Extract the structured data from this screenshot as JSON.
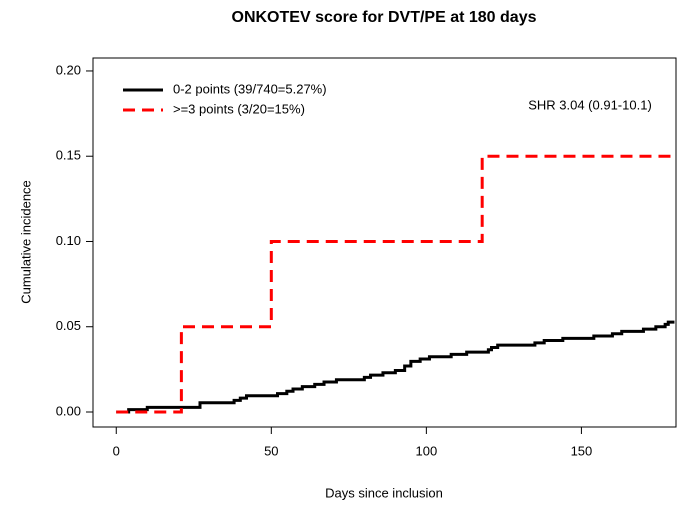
{
  "chart_data": {
    "type": "step",
    "title": "ONKOTEV score for DVT/PE at 180 days",
    "xlabel": "Days since inclusion",
    "ylabel": "Cumulative incidence",
    "annotation": "SHR 3.04 (0.91-10.1)",
    "xlim": [
      -7.5,
      180.5
    ],
    "ylim": [
      -0.0088,
      0.2076
    ],
    "xticks": [
      0,
      50,
      100,
      150
    ],
    "yticks": [
      {
        "value": 0,
        "label": "0.00"
      },
      {
        "value": 0.05,
        "label": "0.05"
      },
      {
        "value": 0.1,
        "label": "0.10"
      },
      {
        "value": 0.15,
        "label": "0.15"
      },
      {
        "value": 0.2,
        "label": "0.20"
      }
    ],
    "legend": "top-left",
    "series": [
      {
        "name": "0-2 points (39/740=5.27%)",
        "color": "#000000",
        "dashed": false,
        "x": [
          0,
          4,
          10,
          27,
          38,
          40,
          42,
          52,
          55,
          57,
          60,
          64,
          67,
          71,
          80,
          82,
          86,
          90,
          93,
          95,
          98,
          101,
          108,
          113,
          120,
          121,
          123,
          135,
          138,
          144,
          154,
          160,
          163,
          170,
          174,
          177,
          178,
          180
        ],
        "values": [
          0,
          0.0014,
          0.0027,
          0.0054,
          0.0068,
          0.0081,
          0.0095,
          0.0108,
          0.0122,
          0.0135,
          0.0149,
          0.0162,
          0.0176,
          0.0189,
          0.0203,
          0.0216,
          0.023,
          0.0243,
          0.027,
          0.0297,
          0.0311,
          0.0324,
          0.0338,
          0.0351,
          0.0365,
          0.0378,
          0.0392,
          0.0405,
          0.0419,
          0.0432,
          0.0446,
          0.0459,
          0.0473,
          0.0486,
          0.05,
          0.0514,
          0.0527,
          0.0527
        ]
      },
      {
        "name": ">=3 points (3/20=15%)",
        "color": "#ff0000",
        "dashed": true,
        "x": [
          0,
          21,
          50,
          118,
          180
        ],
        "values": [
          0,
          0.05,
          0.1,
          0.15,
          0.15
        ]
      }
    ]
  }
}
